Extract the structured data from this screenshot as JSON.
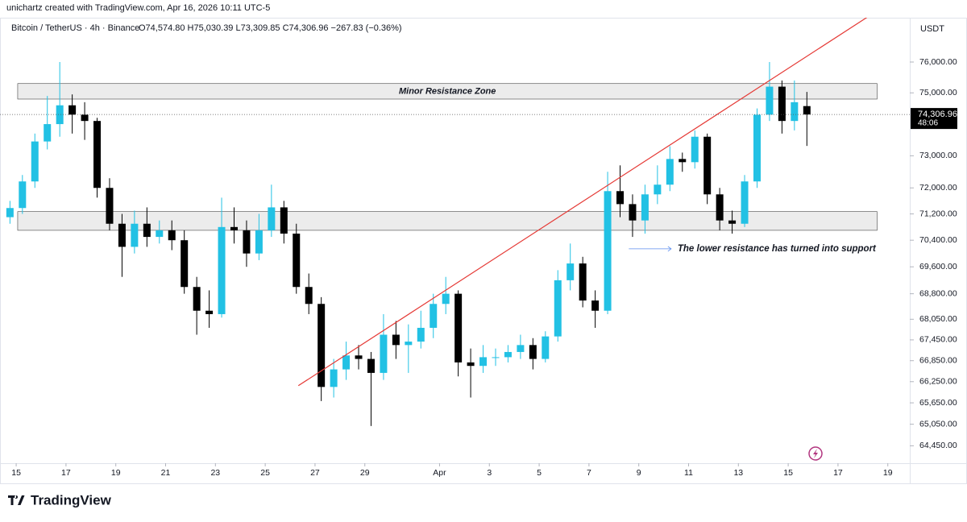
{
  "header": "unichartz created with TradingView.com, Apr 16, 2026 10:11 UTC-5",
  "chart_data": {
    "type": "candlestick",
    "legend": "Bitcoin / TetherUS · 4h · Binance",
    "ohlc_text": "O74,574.80 H75,030.39 L73,309.85 C74,306.96 −267.83 (−0.36%)",
    "currency": "USDT",
    "up_color": "#22c1e4",
    "down_color": "#000000",
    "log_scale": true,
    "grid": false,
    "x": [
      14.75,
      15.25,
      15.75,
      16.25,
      16.75,
      17.25,
      17.75,
      18.25,
      18.75,
      19.25,
      19.75,
      20.25,
      20.75,
      21.25,
      21.75,
      22.25,
      22.75,
      23.25,
      23.75,
      24.25,
      24.75,
      25.25,
      25.75,
      26.25,
      26.75,
      27.25,
      27.75,
      28.25,
      28.75,
      29.25,
      29.75,
      30.25,
      30.75,
      31.25,
      31.75,
      32.25,
      32.75,
      33.25,
      33.75,
      34.25,
      34.75,
      35.25,
      35.75,
      36.25,
      36.75,
      37.25,
      37.75,
      38.25,
      38.75,
      39.25,
      39.75,
      40.25,
      40.75,
      41.25,
      41.75,
      42.25,
      42.75,
      43.25,
      43.75,
      44.25,
      44.75,
      45.25,
      45.75,
      46.25,
      46.75
    ],
    "open": [
      71100,
      71380,
      72200,
      73450,
      74000,
      74600,
      74300,
      74100,
      72000,
      70900,
      70200,
      70900,
      70500,
      70700,
      70400,
      69000,
      68300,
      68200,
      70800,
      70700,
      70000,
      70700,
      71400,
      70600,
      69000,
      68500,
      66100,
      66600,
      67000,
      66900,
      66500,
      67600,
      67300,
      67400,
      67800,
      68500,
      68800,
      66800,
      66700,
      66950,
      66950,
      67100,
      67300,
      66900,
      67550,
      69200,
      69700,
      68600,
      68300,
      71900,
      71500,
      71000,
      71800,
      72100,
      72900,
      72800,
      73600,
      71800,
      71000,
      70900,
      72200,
      74300,
      75200,
      74100,
      74574.8
    ],
    "high": [
      71600,
      72400,
      73700,
      74900,
      76000,
      74950,
      74700,
      74200,
      72300,
      71200,
      71300,
      71400,
      71000,
      71000,
      70700,
      69300,
      68900,
      71700,
      71400,
      71000,
      71200,
      72100,
      71600,
      70900,
      69400,
      68700,
      66900,
      67400,
      67300,
      67100,
      68200,
      68000,
      67900,
      68300,
      68800,
      69300,
      68900,
      67200,
      67300,
      67200,
      67300,
      67600,
      67500,
      67700,
      69500,
      70300,
      69900,
      68900,
      72500,
      72700,
      71800,
      72100,
      72700,
      73300,
      73100,
      73800,
      73700,
      72000,
      71300,
      72400,
      74500,
      76000,
      75400,
      75400,
      75030.39
    ],
    "low": [
      70900,
      71200,
      72000,
      73200,
      73600,
      73700,
      73500,
      71700,
      70700,
      69300,
      70000,
      70200,
      70300,
      70100,
      68800,
      67600,
      67800,
      68100,
      70300,
      69600,
      69800,
      70500,
      70300,
      68800,
      68200,
      65700,
      65800,
      66300,
      66600,
      65000,
      66300,
      66900,
      66500,
      67200,
      67500,
      68200,
      66400,
      65800,
      66500,
      66700,
      66800,
      66900,
      66600,
      66800,
      67400,
      68900,
      68400,
      67800,
      68200,
      71100,
      70500,
      70600,
      71500,
      71900,
      72500,
      72600,
      71500,
      70700,
      70600,
      70800,
      72000,
      74100,
      73700,
      73800,
      73309.85
    ],
    "close": [
      71380,
      72200,
      73450,
      74000,
      74600,
      74300,
      74100,
      72000,
      70900,
      70200,
      70900,
      70500,
      70700,
      70400,
      69000,
      68300,
      68200,
      70800,
      70700,
      70000,
      70700,
      71400,
      70600,
      69000,
      68500,
      66100,
      66600,
      67000,
      66900,
      66500,
      67600,
      67300,
      67400,
      67800,
      68500,
      68800,
      66800,
      66700,
      66950,
      66950,
      67100,
      67300,
      66900,
      67550,
      69200,
      69700,
      68600,
      68300,
      71900,
      71500,
      71000,
      71800,
      72100,
      72900,
      72800,
      73600,
      71800,
      71000,
      70900,
      72200,
      74300,
      75200,
      74100,
      74700,
      74306.96
    ],
    "xlim": [
      14.35,
      50.85
    ],
    "xticks": [
      15,
      17,
      19,
      21,
      23,
      25,
      27,
      29,
      {
        "value": 32,
        "label": "Apr"
      },
      {
        "value": 34,
        "label": "3"
      },
      {
        "value": 36,
        "label": "5"
      },
      {
        "value": 38,
        "label": "7"
      },
      {
        "value": 40,
        "label": "9"
      },
      {
        "value": 42,
        "label": "11"
      },
      {
        "value": 44,
        "label": "13"
      },
      {
        "value": 46,
        "label": "15"
      },
      {
        "value": 48,
        "label": "17"
      },
      {
        "value": 50,
        "label": "19"
      }
    ],
    "ylim": [
      63970,
      77460
    ],
    "yticks": [
      {
        "value": 76000,
        "label": "76,000.00"
      },
      {
        "value": 75000,
        "label": "75,000.00"
      },
      {
        "value": 73000,
        "label": "73,000.00"
      },
      {
        "value": 72000,
        "label": "72,000.00"
      },
      {
        "value": 71200,
        "label": "71,200.00"
      },
      {
        "value": 70400,
        "label": "70,400.00"
      },
      {
        "value": 69600,
        "label": "69,600.00"
      },
      {
        "value": 68800,
        "label": "68,800.00"
      },
      {
        "value": 68050,
        "label": "68,050.00"
      },
      {
        "value": 67450,
        "label": "67,450.00"
      },
      {
        "value": 66850,
        "label": "66,850.00"
      },
      {
        "value": 66250,
        "label": "66,250.00"
      },
      {
        "value": 65650,
        "label": "65,650.00"
      },
      {
        "value": 65050,
        "label": "65,050.00"
      },
      {
        "value": 64450,
        "label": "64,450.00"
      }
    ],
    "zones": [
      {
        "label": "Minor Resistance Zone",
        "low": 74800,
        "high": 75300,
        "x": [
          15.06,
          49.57
        ]
      },
      {
        "low": 70700,
        "high": 71270,
        "x": [
          15.06,
          49.57
        ]
      }
    ],
    "trendline": {
      "x": [
        26.33,
        49.24
      ],
      "y": [
        66136,
        77513
      ],
      "color": "#e53935"
    },
    "annotation": {
      "text": "The lower resistance has turned into support",
      "x": [
        39.6,
        41.3
      ],
      "y": 70140
    },
    "last_price": {
      "value": 74306.96,
      "label": "74,306.96",
      "countdown": "48:06"
    }
  },
  "footer": "TradingView"
}
